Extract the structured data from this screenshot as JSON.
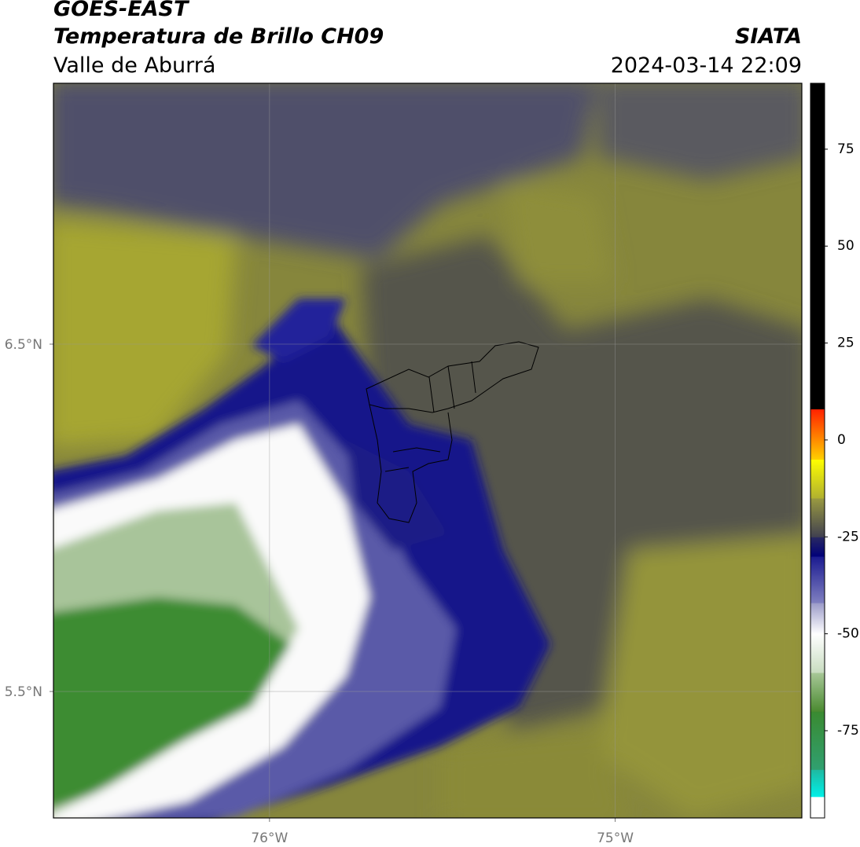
{
  "header": {
    "title": "GOES-EAST",
    "subtitle": "Temperatura de Brillo CH09",
    "region": "Valle de Aburrá",
    "source": "SIATA",
    "datetime": "2024-03-14 22:09"
  },
  "map": {
    "xlim": [
      -76.625,
      -74.46
    ],
    "ylim": [
      5.136,
      7.251
    ],
    "xticks": [
      {
        "value": -76,
        "label": "76°W"
      },
      {
        "value": -75,
        "label": "75°W"
      }
    ],
    "yticks": [
      {
        "value": 6.5,
        "label": "6.5°N"
      },
      {
        "value": 5.5,
        "label": "5.5°N"
      }
    ],
    "grid": true
  },
  "colorbar": {
    "lim": [
      -97.5,
      92
    ],
    "ticks": [
      -75,
      -50,
      -25,
      0,
      25,
      50,
      75
    ],
    "segments": [
      {
        "from": -97.5,
        "to": -92,
        "colors": [
          "#ffffff",
          "#ffffff"
        ]
      },
      {
        "from": -92,
        "to": -85,
        "colors": [
          "#00f0e8",
          "#20b8a0"
        ]
      },
      {
        "from": -85,
        "to": -70,
        "colors": [
          "#30a070",
          "#3a8a30"
        ]
      },
      {
        "from": -70,
        "to": -60,
        "colors": [
          "#4a8a30",
          "#a8c898"
        ]
      },
      {
        "from": -60,
        "to": -50,
        "colors": [
          "#c8dcc0",
          "#ffffff"
        ]
      },
      {
        "from": -50,
        "to": -42,
        "colors": [
          "#ffffff",
          "#9a9ac8"
        ]
      },
      {
        "from": -42,
        "to": -30,
        "colors": [
          "#8080c0",
          "#1a1a90"
        ]
      },
      {
        "from": -30,
        "to": -25,
        "colors": [
          "#00007a",
          "#2a2a60"
        ]
      },
      {
        "from": -25,
        "to": -15,
        "colors": [
          "#404050",
          "#9a9a40"
        ]
      },
      {
        "from": -15,
        "to": -5,
        "colors": [
          "#b0b030",
          "#ffff00"
        ]
      },
      {
        "from": -5,
        "to": 8,
        "colors": [
          "#ffd000",
          "#ff2000"
        ]
      },
      {
        "from": 8,
        "to": 92,
        "colors": [
          "#000000",
          "#000000"
        ]
      }
    ]
  }
}
